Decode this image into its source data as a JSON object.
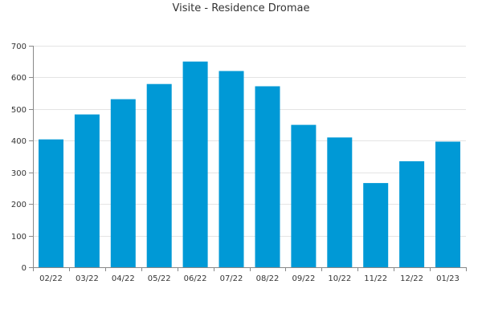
{
  "chart_data": {
    "type": "bar",
    "title": "Visite - Residence Dromae",
    "xlabel": "",
    "ylabel": "",
    "categories": [
      "02/22",
      "03/22",
      "04/22",
      "05/22",
      "06/22",
      "07/22",
      "08/22",
      "09/22",
      "10/22",
      "11/22",
      "12/22",
      "01/23"
    ],
    "values": [
      404,
      483,
      531,
      579,
      650,
      620,
      572,
      450,
      410,
      266,
      335,
      397
    ],
    "ylim": [
      0,
      700
    ],
    "yticks": [
      0,
      100,
      200,
      300,
      400,
      500,
      600,
      700
    ],
    "grid": true,
    "legend": "none",
    "bar_color": "#0099d6"
  }
}
